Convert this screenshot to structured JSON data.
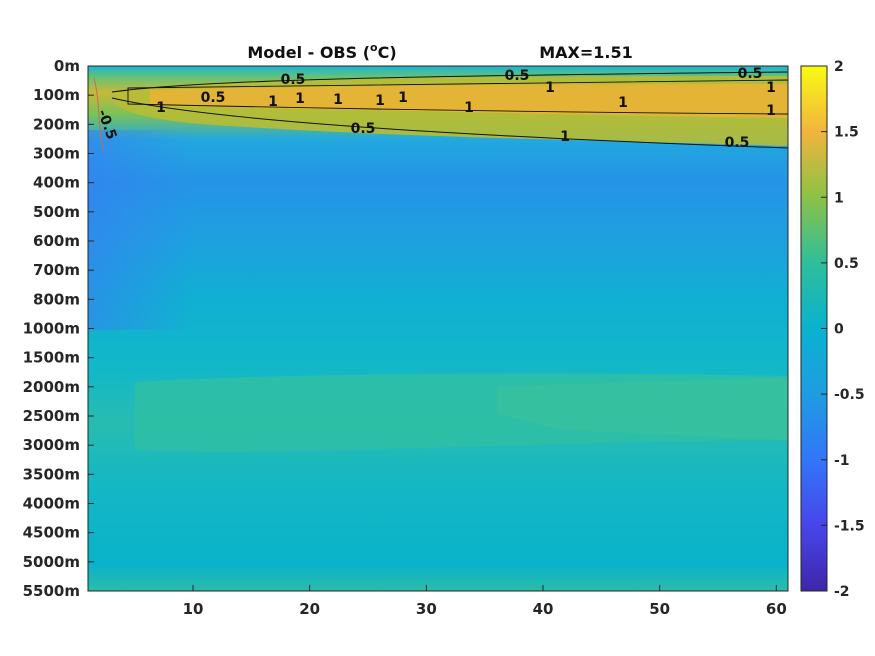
{
  "chart_data": {
    "type": "heatmap",
    "title": "Model - OBS (",
    "title_sup": "o",
    "title_suffix": "C)",
    "max_label": "MAX=1.51",
    "colormap": "parula",
    "x_ticks": [
      "10",
      "20",
      "30",
      "40",
      "50",
      "60"
    ],
    "x_tick_values": [
      10,
      20,
      30,
      40,
      50,
      60
    ],
    "xlim": [
      1,
      61
    ],
    "y_ticks": [
      "0m",
      "100m",
      "200m",
      "300m",
      "400m",
      "500m",
      "600m",
      "700m",
      "800m",
      "1000m",
      "1500m",
      "2000m",
      "2500m",
      "3000m",
      "3500m",
      "4000m",
      "4500m",
      "5000m",
      "5500m"
    ],
    "y_scale": "non-uniform depth levels (one row per listed depth)",
    "colorbar": {
      "ticks": [
        "2",
        "1.5",
        "1",
        "0.5",
        "0",
        "-0.5",
        "-1",
        "-1.5",
        "-2"
      ],
      "range": [
        -2,
        2
      ]
    },
    "field_description_rows": [
      {
        "depth": "0m",
        "value": 0.1
      },
      {
        "depth": "100m",
        "value": 1.1
      },
      {
        "depth": "200m",
        "value": 0.6
      },
      {
        "depth": "300m",
        "value": -0.15
      },
      {
        "depth": "400m",
        "value": -0.35
      },
      {
        "depth": "500m",
        "value": -0.4
      },
      {
        "depth": "600m",
        "value": -0.35
      },
      {
        "depth": "700m",
        "value": -0.3
      },
      {
        "depth": "800m",
        "value": -0.25
      },
      {
        "depth": "1000m",
        "value": -0.15
      },
      {
        "depth": "1500m",
        "value": 0.0
      },
      {
        "depth": "2000m",
        "value": 0.1
      },
      {
        "depth": "2500m",
        "value": 0.15
      },
      {
        "depth": "3000m",
        "value": 0.1
      },
      {
        "depth": "3500m",
        "value": 0.05
      },
      {
        "depth": "4000m",
        "value": 0.0
      },
      {
        "depth": "4500m",
        "value": -0.05
      },
      {
        "depth": "5000m",
        "value": -0.05
      },
      {
        "depth": "5500m",
        "value": 0.05
      }
    ],
    "contour_labels": [
      "0.5",
      "1",
      "0.5",
      "1",
      "1",
      "1",
      "1",
      "1",
      "1",
      "0.5",
      "1",
      "1",
      "1",
      "0.5",
      "1",
      "1",
      "0.5",
      "0.5",
      "-0.5"
    ],
    "grid": false
  }
}
